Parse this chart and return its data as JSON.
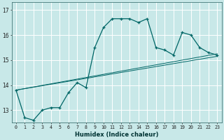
{
  "xlabel": "Humidex (Indice chaleur)",
  "bg_color": "#c8e8e8",
  "line_color": "#006666",
  "grid_color": "#aadddd",
  "xlim": [
    -0.5,
    23.5
  ],
  "ylim": [
    12.5,
    17.3
  ],
  "yticks": [
    13,
    14,
    15,
    16,
    17
  ],
  "xticks": [
    0,
    1,
    2,
    3,
    4,
    5,
    6,
    7,
    8,
    9,
    10,
    11,
    12,
    13,
    14,
    15,
    16,
    17,
    18,
    19,
    20,
    21,
    22,
    23
  ],
  "series1_x": [
    0,
    1,
    2,
    3,
    4,
    5,
    6,
    7,
    8,
    9,
    10,
    11,
    12,
    13,
    14,
    15,
    16,
    17,
    18,
    19,
    20,
    21,
    22,
    23
  ],
  "series1_y": [
    13.8,
    12.7,
    12.6,
    13.0,
    13.1,
    13.1,
    13.7,
    14.1,
    13.9,
    15.5,
    16.3,
    16.65,
    16.65,
    16.65,
    16.5,
    16.65,
    15.5,
    15.4,
    15.2,
    16.1,
    16.0,
    15.5,
    15.3,
    15.2
  ],
  "series2_x": [
    0,
    23
  ],
  "series2_y": [
    13.8,
    15.2
  ],
  "series3_x": [
    0,
    23
  ],
  "series3_y": [
    13.8,
    15.2
  ],
  "series2_end_y": 15.15,
  "series3_end_y": 15.25,
  "figsize": [
    3.2,
    2.0
  ],
  "dpi": 100
}
